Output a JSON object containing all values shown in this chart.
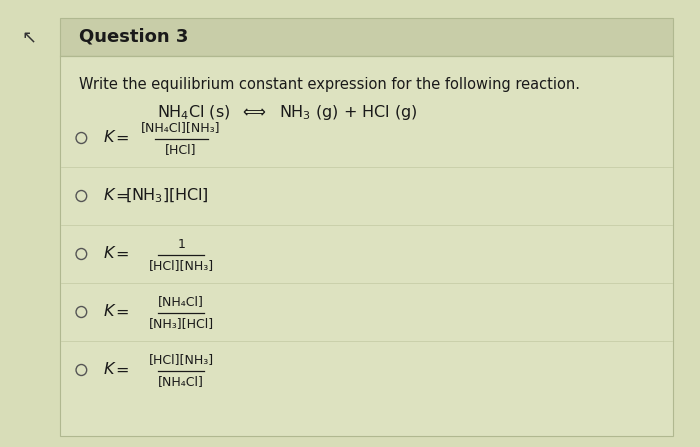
{
  "title": "Question 3",
  "outer_bg": "#d8ddb8",
  "header_bg": "#c8cda8",
  "content_bg": "#dde2c0",
  "border_color": "#b0b890",
  "text_color": "#1a1a1a",
  "instruction": "Write the equilibrium constant expression for the following reaction.",
  "options": [
    {
      "type": "fraction",
      "num": "[NH₄Cl][NH₃]",
      "den": "[HCl]"
    },
    {
      "type": "plain",
      "text": "K = [NH₃][HCl]"
    },
    {
      "type": "fraction",
      "num": "1",
      "den": "[HCl][NH₃]"
    },
    {
      "type": "fraction",
      "num": "[NH₄Cl]",
      "den": "[NH₃][HCl]"
    },
    {
      "type": "fraction",
      "num": "[HCl][NH₃]",
      "den": "[NH₄Cl]"
    }
  ]
}
